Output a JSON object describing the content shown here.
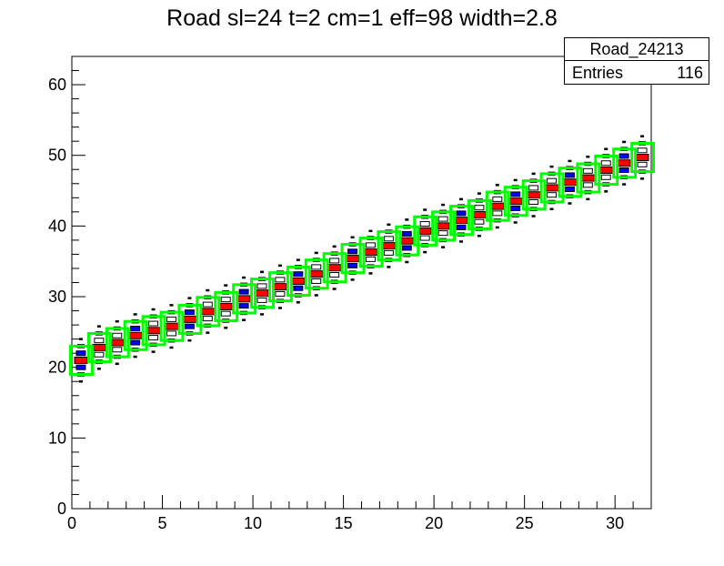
{
  "title": "Road sl=24 t=2 cm=1 eff=98 width=2.8",
  "stats": {
    "name": "Road_24213",
    "entries_label": "Entries",
    "entries_value": "116"
  },
  "chart_data": {
    "type": "heatmap",
    "title": "Road sl=24 t=2 cm=1 eff=98 width=2.8",
    "xlabel": "",
    "ylabel": "",
    "xlim": [
      0,
      32
    ],
    "ylim": [
      0,
      64
    ],
    "x_ticks": [
      0,
      5,
      10,
      15,
      20,
      25,
      30
    ],
    "y_ticks": [
      0,
      10,
      20,
      30,
      40,
      50,
      60
    ],
    "grid": false,
    "road": {
      "bins_x": [
        0,
        1,
        2,
        3,
        4,
        5,
        6,
        7,
        8,
        9,
        10,
        11,
        12,
        13,
        14,
        15,
        16,
        17,
        18,
        19,
        20,
        21,
        22,
        23,
        24,
        25,
        26,
        27,
        28,
        29,
        30,
        31
      ],
      "center_y": [
        21.0,
        22.8,
        23.5,
        24.5,
        25.2,
        25.8,
        26.8,
        27.9,
        28.6,
        29.7,
        30.5,
        31.4,
        32.2,
        33.2,
        34.1,
        35.4,
        36.3,
        37.2,
        37.9,
        39.3,
        40.0,
        40.8,
        41.6,
        42.8,
        43.5,
        44.4,
        45.4,
        46.2,
        46.8,
        47.9,
        48.9,
        49.7
      ],
      "width": 2.8,
      "color": "#00ff00"
    },
    "colors": {
      "frame": "#000000",
      "low": "#ffffff",
      "mid": "#0000ff",
      "high": "#ff0000",
      "road": "#00ff00"
    }
  }
}
